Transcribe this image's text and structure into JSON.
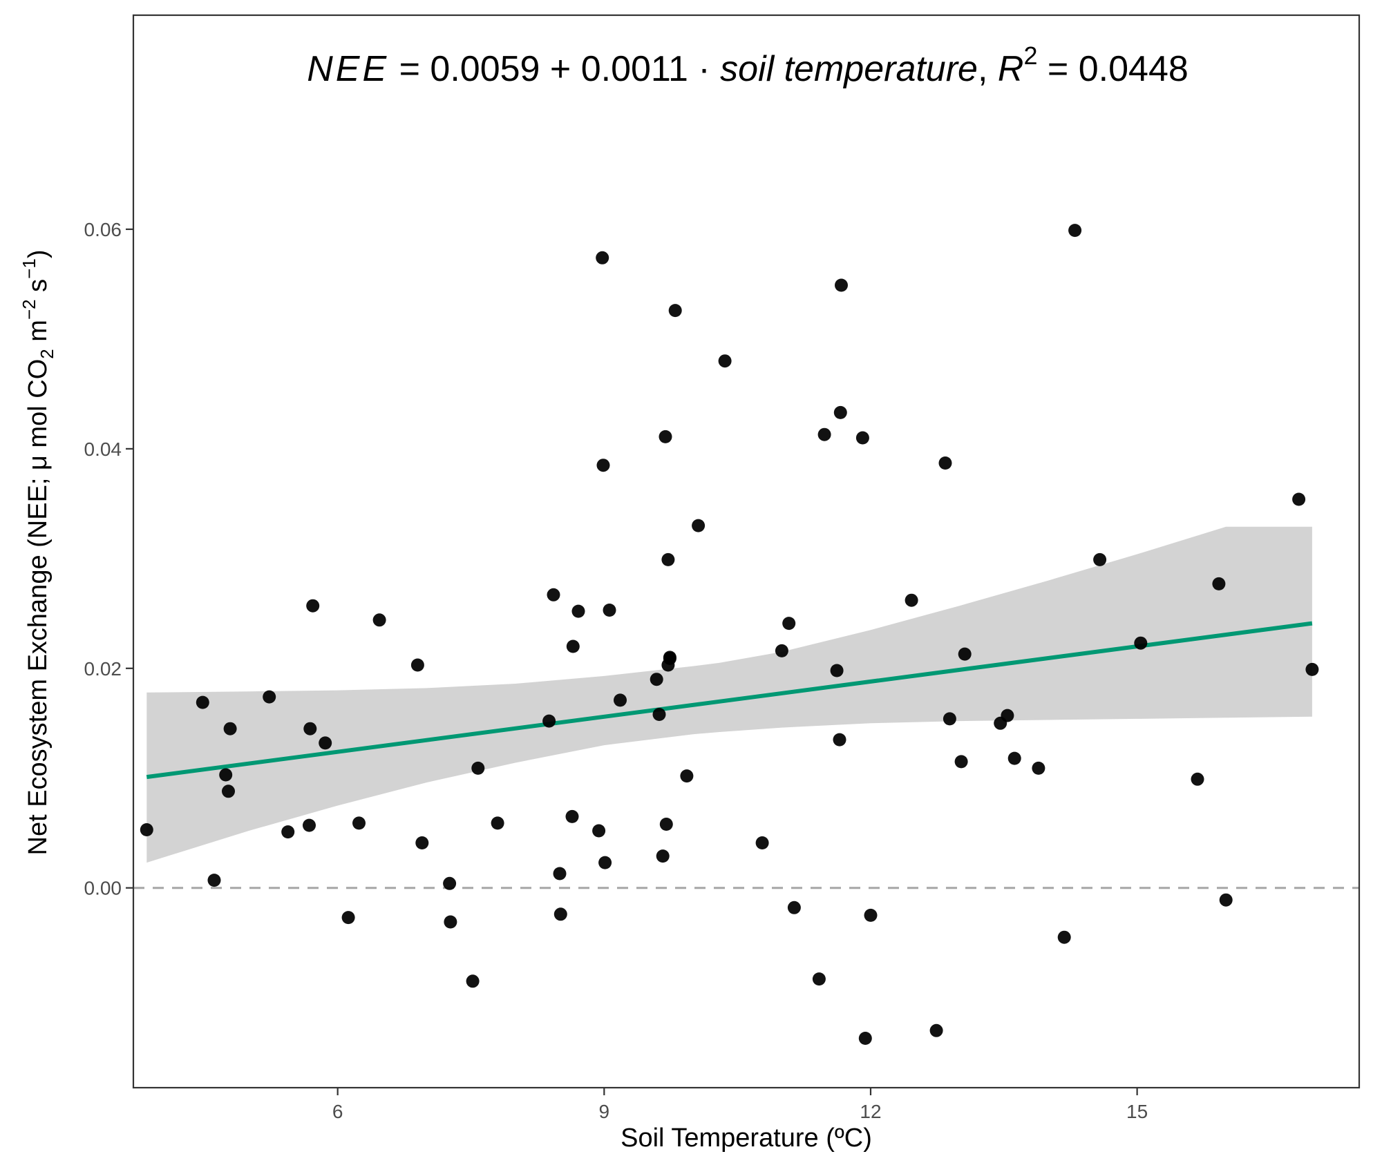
{
  "chart_data": {
    "type": "scatter",
    "title": "",
    "annotation": {
      "lhs": "NEE",
      "intercept": "0.0059",
      "slope": "0.0011",
      "predictor": "soil temperature",
      "r2_symbol": "R",
      "r2_exponent": "2",
      "r2_value": "0.0448"
    },
    "xlabel": "Soil Temperature (ºC)",
    "ylabel_parts": {
      "main": "Net Ecosystem Exchange (NEE; μ mol CO",
      "sub": "2",
      "mid": " m",
      "sup1": "−2",
      "mid2": " s",
      "sup2": "−1",
      "end": ")"
    },
    "xlim": [
      3.7,
      17.5
    ],
    "ylim": [
      -0.0182,
      0.0795
    ],
    "x_ticks": [
      6,
      9,
      12,
      15
    ],
    "x_tick_labels": [
      "6",
      "9",
      "12",
      "15"
    ],
    "y_ticks": [
      0.0,
      0.02,
      0.04,
      0.06
    ],
    "y_tick_labels": [
      "0.00",
      "0.02",
      "0.04",
      "0.06"
    ],
    "grid": false,
    "zero_reference_line": {
      "y": 0,
      "style": "dashed",
      "color": "#a6a6a6"
    },
    "regression": {
      "x": [
        3.85,
        16.97
      ],
      "y": [
        0.0101,
        0.0241
      ],
      "color": "#009873"
    },
    "confidence_band": {
      "x": [
        3.85,
        5.0,
        6.0,
        7.0,
        8.0,
        9.0,
        10.0,
        10.3,
        11.0,
        12.0,
        13.0,
        14.0,
        15.0,
        16.0,
        16.97
      ],
      "lower": [
        0.0023,
        0.0052,
        0.0075,
        0.0096,
        0.0114,
        0.013,
        0.014,
        0.0142,
        0.0146,
        0.015,
        0.0152,
        0.0153,
        0.0154,
        0.0155,
        0.0156
      ],
      "upper": [
        0.0178,
        0.0179,
        0.018,
        0.0182,
        0.0186,
        0.0193,
        0.0202,
        0.0205,
        0.0215,
        0.0235,
        0.0257,
        0.028,
        0.0304,
        0.0329,
        0.0329
      ],
      "color": "#d3d3d3"
    },
    "points": {
      "color": "#000000",
      "x": [
        3.85,
        4.48,
        4.61,
        4.74,
        4.77,
        4.79,
        5.23,
        5.44,
        5.68,
        5.69,
        5.72,
        5.86,
        6.12,
        6.24,
        6.47,
        6.9,
        6.95,
        7.26,
        7.27,
        7.52,
        7.58,
        7.8,
        8.38,
        8.43,
        8.5,
        8.51,
        8.64,
        8.65,
        8.71,
        8.94,
        8.98,
        8.99,
        9.01,
        9.06,
        9.18,
        9.59,
        9.62,
        9.66,
        9.69,
        9.7,
        9.72,
        9.72,
        9.74,
        9.74,
        9.8,
        9.93,
        10.06,
        10.36,
        10.78,
        11.0,
        11.08,
        11.14,
        11.42,
        11.48,
        11.62,
        11.65,
        11.66,
        11.67,
        11.91,
        11.94,
        12.0,
        12.46,
        12.74,
        12.84,
        12.89,
        13.02,
        13.06,
        13.46,
        13.54,
        13.62,
        13.89,
        14.18,
        14.3,
        14.58,
        15.04,
        15.68,
        15.92,
        16.0,
        16.82,
        16.97
      ],
      "y": [
        0.0053,
        0.0169,
        0.0007,
        0.0103,
        0.0088,
        0.0145,
        0.0174,
        0.0051,
        0.0057,
        0.0145,
        0.0257,
        0.0132,
        -0.0027,
        0.0059,
        0.0244,
        0.0203,
        0.0041,
        0.0004,
        -0.0031,
        -0.0085,
        0.0109,
        0.0059,
        0.0152,
        0.0267,
        0.0013,
        -0.0024,
        0.0065,
        0.022,
        0.0252,
        0.0052,
        0.0574,
        0.0385,
        0.0023,
        0.0253,
        0.0171,
        0.019,
        0.0158,
        0.0029,
        0.0411,
        0.0058,
        0.0299,
        0.0203,
        0.021,
        0.0209,
        0.0526,
        0.0102,
        0.033,
        0.048,
        0.0041,
        0.0216,
        0.0241,
        -0.0018,
        -0.0083,
        0.0413,
        0.0198,
        0.0135,
        0.0433,
        0.0549,
        0.041,
        -0.0137,
        -0.0025,
        0.0262,
        -0.013,
        0.0387,
        0.0154,
        0.0115,
        0.0213,
        0.015,
        0.0157,
        0.0118,
        0.0109,
        -0.0045,
        0.0599,
        0.0299,
        0.0223,
        0.0099,
        0.0277,
        -0.0011,
        0.0354,
        0.0199
      ]
    }
  }
}
